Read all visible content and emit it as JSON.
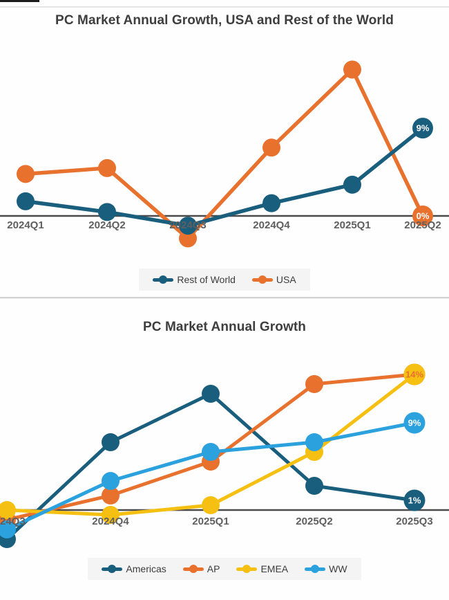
{
  "colors": {
    "dark_blue": "#1A5E7E",
    "orange": "#E8712E",
    "yellow": "#F6C013",
    "light_blue": "#2BA1DE",
    "axis": "#4a4a4a",
    "tick_text": "#5f5f5f",
    "legend_bg": "#f4f4f4"
  },
  "charts": [
    {
      "title": "PC Market Annual Growth, USA and Rest of the World",
      "chart_data": {
        "type": "line",
        "categories": [
          "2024Q1",
          "2024Q2",
          "2024Q3",
          "2024Q4",
          "2025Q1",
          "2025Q2"
        ],
        "series": [
          {
            "name": "USA",
            "color": "#E8712E",
            "values": [
              4.3,
              4.9,
              -2.3,
              7,
              15,
              0
            ],
            "end_label": "0%",
            "end_label_color": "#ffffff"
          },
          {
            "name": "Rest of World",
            "color": "#1A5E7E",
            "values": [
              1.5,
              0.4,
              -1,
              1.3,
              3.2,
              9
            ],
            "end_label": "9%",
            "end_label_color": "#ffffff"
          }
        ],
        "axis_color": "#4a4a4a",
        "ylim": [
          -4,
          18
        ],
        "grid": false,
        "legend_position": "bottom"
      },
      "legend": {
        "items": [
          {
            "label": "Rest of World",
            "color": "#1A5E7E"
          },
          {
            "label": "USA",
            "color": "#E8712E"
          }
        ]
      }
    },
    {
      "title": "PC Market Annual Growth",
      "chart_data": {
        "type": "line",
        "categories": [
          "2024Q3",
          "2024Q4",
          "2025Q1",
          "2025Q2",
          "2025Q3"
        ],
        "series": [
          {
            "name": "Americas",
            "color": "#1A5E7E",
            "values": [
              -3,
              7,
              12,
              2.5,
              1
            ],
            "end_label": "1%",
            "end_label_color": "#ffffff"
          },
          {
            "name": "AP",
            "color": "#E8712E",
            "values": [
              -1,
              1.5,
              5,
              13,
              14
            ],
            "end_label": "14%",
            "end_label_color": "#E8712E"
          },
          {
            "name": "EMEA",
            "color": "#F6C013",
            "values": [
              0,
              -0.5,
              0.5,
              6,
              14
            ],
            "end_label": "",
            "end_label_color": ""
          },
          {
            "name": "WW",
            "color": "#2BA1DE",
            "values": [
              -2,
              3,
              6,
              7,
              9
            ],
            "end_label": "9%",
            "end_label_color": "#ffffff"
          }
        ],
        "axis_color": "#4a4a4a",
        "ylim": [
          -4.5,
          17
        ],
        "grid": false,
        "legend_position": "bottom"
      },
      "legend": {
        "items": [
          {
            "label": "Americas",
            "color": "#1A5E7E"
          },
          {
            "label": "AP",
            "color": "#E8712E"
          },
          {
            "label": "EMEA",
            "color": "#F6C013"
          },
          {
            "label": "WW",
            "color": "#2BA1DE"
          }
        ]
      }
    }
  ]
}
